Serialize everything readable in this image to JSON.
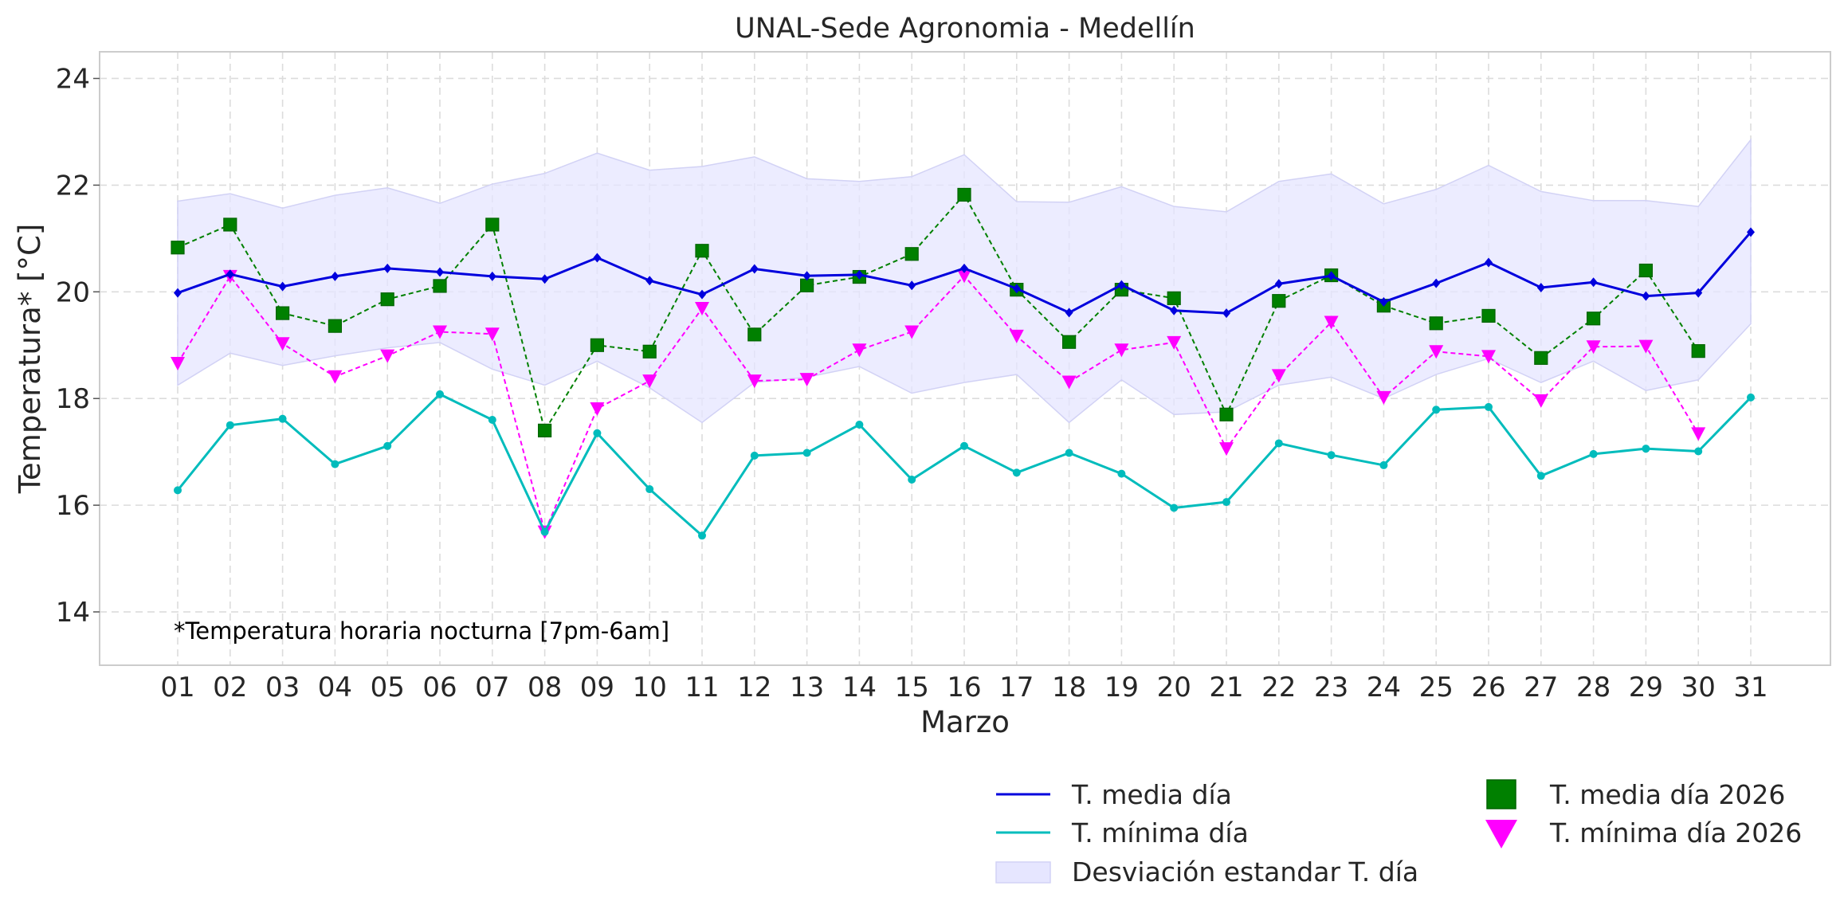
{
  "chart_data": {
    "type": "line",
    "title": "UNAL-Sede Agronomia - Medellín",
    "xlabel": "Marzo",
    "ylabel": "Temperatura* [°C]",
    "annotation": "*Temperatura horaria nocturna [7pm-6am]",
    "categories": [
      "01",
      "02",
      "03",
      "04",
      "05",
      "06",
      "07",
      "08",
      "09",
      "10",
      "11",
      "12",
      "13",
      "14",
      "15",
      "16",
      "17",
      "18",
      "19",
      "20",
      "21",
      "22",
      "23",
      "24",
      "25",
      "26",
      "27",
      "28",
      "29",
      "30",
      "31"
    ],
    "ylim": [
      13,
      24.5
    ],
    "yticks": [
      14,
      16,
      18,
      20,
      22,
      24
    ],
    "grid": true,
    "legend_position": "bottom-right",
    "series": [
      {
        "name": "T. media día",
        "key": "mean",
        "style": "solid",
        "marker": "diamond",
        "color": "#0000dd",
        "values": [
          19.98,
          20.33,
          20.1,
          20.29,
          20.44,
          20.37,
          20.29,
          20.24,
          20.64,
          20.21,
          19.95,
          20.43,
          20.3,
          20.32,
          20.12,
          20.44,
          20.06,
          19.61,
          20.13,
          19.65,
          19.6,
          20.15,
          20.3,
          19.81,
          20.16,
          20.55,
          20.08,
          20.18,
          19.92,
          19.98,
          21.12
        ]
      },
      {
        "name": "T. mínima día",
        "key": "min",
        "style": "solid",
        "marker": "circle",
        "color": "#00bcbc",
        "values": [
          16.28,
          17.5,
          17.62,
          16.77,
          17.11,
          18.08,
          17.6,
          15.5,
          17.35,
          16.3,
          15.43,
          16.93,
          16.98,
          17.51,
          16.48,
          17.11,
          16.61,
          16.98,
          16.59,
          15.95,
          16.06,
          17.16,
          16.94,
          16.75,
          17.79,
          17.84,
          16.55,
          16.96,
          17.06,
          17.01,
          18.02
        ]
      },
      {
        "name": "T. media día 2026",
        "key": "mean2026",
        "style": "dashed",
        "marker": "square",
        "color": "#008000",
        "values": [
          20.83,
          21.26,
          19.6,
          19.36,
          19.86,
          20.11,
          21.26,
          17.4,
          19.0,
          18.88,
          20.77,
          19.2,
          20.12,
          20.28,
          20.71,
          21.82,
          20.04,
          19.06,
          20.04,
          19.88,
          17.7,
          19.83,
          20.31,
          19.74,
          19.41,
          19.55,
          18.76,
          19.5,
          20.4,
          18.89,
          null
        ]
      },
      {
        "name": "T. mínima día 2026",
        "key": "min2026",
        "style": "dashed",
        "marker": "triangle-down",
        "color": "#ff00ff",
        "values": [
          18.66,
          20.29,
          19.03,
          18.41,
          18.8,
          19.25,
          19.21,
          15.5,
          17.81,
          18.33,
          19.69,
          18.33,
          18.36,
          18.91,
          19.25,
          20.3,
          19.17,
          18.31,
          18.91,
          19.05,
          17.06,
          18.43,
          19.43,
          18.02,
          18.88,
          18.79,
          17.96,
          18.97,
          18.98,
          17.34,
          null
        ]
      }
    ],
    "band": {
      "name": "Desviación estandar T. día",
      "color": "#e6e6ff",
      "upper": [
        21.7,
        21.84,
        21.57,
        21.81,
        21.95,
        21.66,
        22.02,
        22.22,
        22.6,
        22.28,
        22.35,
        22.53,
        22.12,
        22.07,
        22.16,
        22.57,
        21.69,
        21.68,
        21.97,
        21.6,
        21.5,
        22.07,
        22.21,
        21.65,
        21.92,
        22.37,
        21.88,
        21.71,
        21.71,
        21.6,
        22.85
      ],
      "lower": [
        18.25,
        18.85,
        18.62,
        18.8,
        18.95,
        19.05,
        18.55,
        18.25,
        18.7,
        18.2,
        17.55,
        18.3,
        18.4,
        18.6,
        18.1,
        18.3,
        18.45,
        17.55,
        18.35,
        17.7,
        17.75,
        18.25,
        18.4,
        18.0,
        18.45,
        18.75,
        18.3,
        18.7,
        18.15,
        18.35,
        19.4
      ]
    }
  },
  "legend": {
    "items": [
      {
        "label": "T. media día"
      },
      {
        "label": "T. mínima día"
      },
      {
        "label": "Desviación estandar T. día"
      },
      {
        "label": "T. media día 2026"
      },
      {
        "label": "T. mínima día 2026"
      }
    ]
  }
}
